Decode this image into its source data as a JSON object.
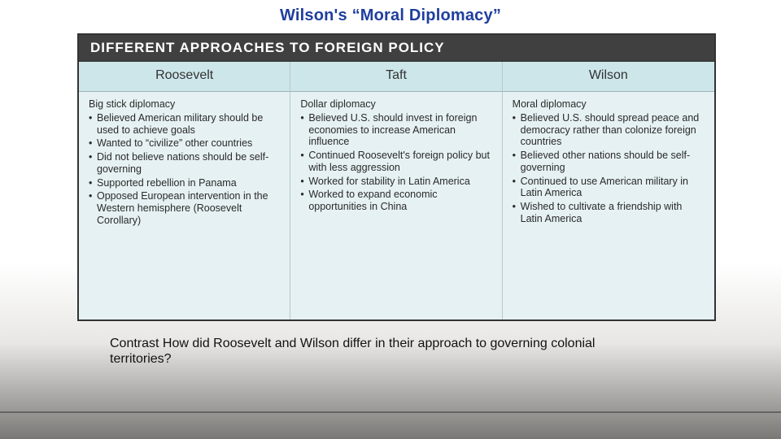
{
  "title": {
    "text": "Wilson's “Moral Diplomacy”",
    "color": "#1f3e9e"
  },
  "table": {
    "heading": "DIFFERENT APPROACHES TO FOREIGN POLICY",
    "header_bg": "#404040",
    "header_text_color": "#ffffff",
    "colhead_bg": "#cde6ea",
    "body_bg": "#e6f1f3",
    "columns": [
      {
        "name": "Roosevelt",
        "approach": "Big stick diplomacy",
        "bullets": [
          "Believed American military should be used to achieve goals",
          "Wanted to “civilize” other countries",
          "Did not believe nations should be self-governing",
          "Supported rebellion in Panama",
          "Opposed European intervention in the Western hemisphere (Roosevelt Corollary)"
        ]
      },
      {
        "name": "Taft",
        "approach": "Dollar diplomacy",
        "bullets": [
          "Believed U.S. should invest in foreign economies to increase American influence",
          "Continued Roosevelt's foreign policy but with less aggression",
          "Worked for stability in Latin America",
          "Worked to expand economic opportunities in China"
        ]
      },
      {
        "name": "Wilson",
        "approach": "Moral diplomacy",
        "bullets": [
          "Believed U.S. should spread peace and democracy rather than colonize foreign countries",
          "Believed other nations should be self-governing",
          "Continued to use American military in Latin America",
          "Wished to cultivate a friendship with Latin America"
        ]
      }
    ]
  },
  "question": "Contrast How did Roosevelt and Wilson differ in their approach to governing colonial territories?"
}
